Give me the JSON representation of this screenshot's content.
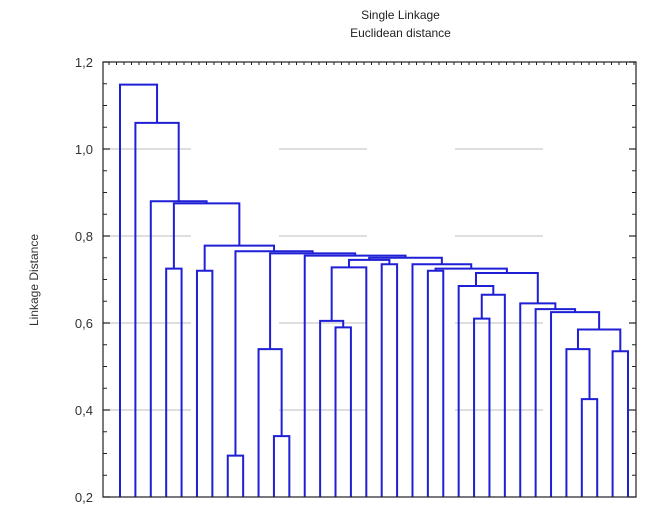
{
  "chart_data": {
    "type": "dendrogram",
    "title": "Single Linkage",
    "subtitle": "Euclidean distance",
    "xlabel": "",
    "ylabel": "Linkage Distance",
    "ylim": [
      0.2,
      1.2
    ],
    "yticks": [
      "0,2",
      "0,4",
      "0,6",
      "0,8",
      "1,0",
      "1,2"
    ],
    "ytick_values": [
      0.2,
      0.4,
      0.6,
      0.8,
      1.0,
      1.2
    ],
    "grid": "horizontal dashed",
    "line_color": "#1f1fd6",
    "leaf_count": 34,
    "links": [
      {
        "id": "A",
        "left": "leaf:31",
        "right": "leaf:32",
        "height": 0.425
      },
      {
        "id": "B",
        "left": "leaf:30",
        "right": "A",
        "height": 0.54
      },
      {
        "id": "C",
        "left": "leaf:33",
        "right": "leaf:34",
        "height": 0.535
      },
      {
        "id": "D",
        "left": "B",
        "right": "C",
        "height": 0.585
      },
      {
        "id": "E",
        "left": "leaf:29",
        "right": "D",
        "height": 0.625
      },
      {
        "id": "F",
        "left": "leaf:28",
        "right": "E",
        "height": 0.632
      },
      {
        "id": "G",
        "left": "leaf:27",
        "right": "F",
        "height": 0.645
      },
      {
        "id": "H",
        "left": "leaf:24",
        "right": "leaf:25",
        "height": 0.61
      },
      {
        "id": "I",
        "left": "H",
        "right": "leaf:26",
        "height": 0.665
      },
      {
        "id": "J",
        "left": "leaf:23",
        "right": "I",
        "height": 0.685
      },
      {
        "id": "K",
        "left": "J",
        "right": "G",
        "height": 0.715
      },
      {
        "id": "L",
        "left": "leaf:21",
        "right": "leaf:22",
        "height": 0.72
      },
      {
        "id": "M",
        "left": "L",
        "right": "K",
        "height": 0.725
      },
      {
        "id": "N",
        "left": "leaf:20",
        "right": "M",
        "height": 0.735
      },
      {
        "id": "O",
        "left": "leaf:15",
        "right": "leaf:16",
        "height": 0.59
      },
      {
        "id": "P",
        "left": "leaf:14",
        "right": "O",
        "height": 0.605
      },
      {
        "id": "Q",
        "left": "P",
        "right": "leaf:17",
        "height": 0.728
      },
      {
        "id": "R",
        "left": "leaf:18",
        "right": "leaf:19",
        "height": 0.735
      },
      {
        "id": "S",
        "left": "Q",
        "right": "R",
        "height": 0.745
      },
      {
        "id": "T",
        "left": "S",
        "right": "N",
        "height": 0.75
      },
      {
        "id": "U",
        "left": "leaf:13",
        "right": "T",
        "height": 0.755
      },
      {
        "id": "V",
        "left": "leaf:11",
        "right": "leaf:12",
        "height": 0.34
      },
      {
        "id": "W",
        "left": "leaf:10",
        "right": "V",
        "height": 0.54
      },
      {
        "id": "X",
        "left": "W",
        "right": "U",
        "height": 0.76
      },
      {
        "id": "Y",
        "left": "leaf:8",
        "right": "leaf:9",
        "height": 0.295
      },
      {
        "id": "Z",
        "left": "Y",
        "right": "X",
        "height": 0.765
      },
      {
        "id": "AA",
        "left": "leaf:6",
        "right": "leaf:7",
        "height": 0.72
      },
      {
        "id": "AB",
        "left": "AA",
        "right": "Z",
        "height": 0.778
      },
      {
        "id": "AC",
        "left": "leaf:4",
        "right": "leaf:5",
        "height": 0.725
      },
      {
        "id": "AD",
        "left": "AC",
        "right": "AB",
        "height": 0.875
      },
      {
        "id": "AE",
        "left": "leaf:3",
        "right": "AD",
        "height": 0.88
      },
      {
        "id": "AF",
        "left": "leaf:2",
        "right": "AE",
        "height": 1.06
      },
      {
        "id": "AG",
        "left": "leaf:1",
        "right": "AF",
        "height": 1.148
      }
    ]
  }
}
